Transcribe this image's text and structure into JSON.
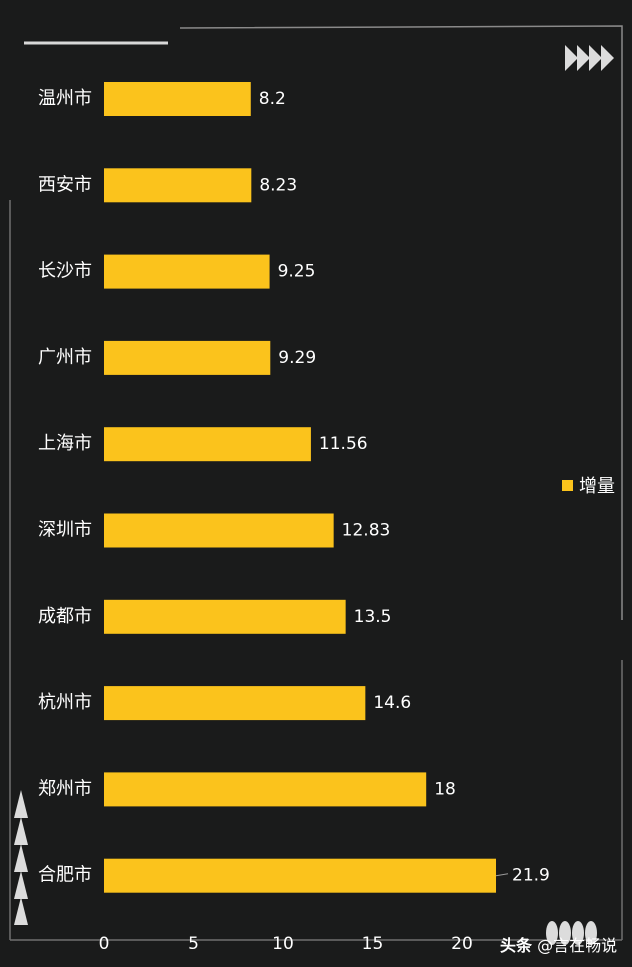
{
  "chart_data": {
    "type": "bar",
    "orientation": "horizontal",
    "categories": [
      "温州市",
      "西安市",
      "长沙市",
      "广州市",
      "上海市",
      "深圳市",
      "成都市",
      "杭州市",
      "郑州市",
      "合肥市"
    ],
    "values": [
      8.2,
      8.23,
      9.25,
      9.29,
      11.56,
      12.83,
      13.5,
      14.6,
      18,
      21.9
    ],
    "value_labels": [
      "8.2",
      "8.23",
      "9.25",
      "9.29",
      "11.56",
      "12.83",
      "13.5",
      "14.6",
      "18",
      "21.9"
    ],
    "series": [
      {
        "name": "增量"
      }
    ],
    "xlim": [
      0,
      20
    ],
    "xticks": [
      "0",
      "5",
      "10",
      "15",
      "20"
    ],
    "bar_color": "#fbc31c",
    "background": "#1a1b1b",
    "legend_position": "right",
    "grid": false
  },
  "legend": {
    "label": "增量"
  },
  "watermark": {
    "brand": "头条",
    "handle": "@言在畅说"
  }
}
